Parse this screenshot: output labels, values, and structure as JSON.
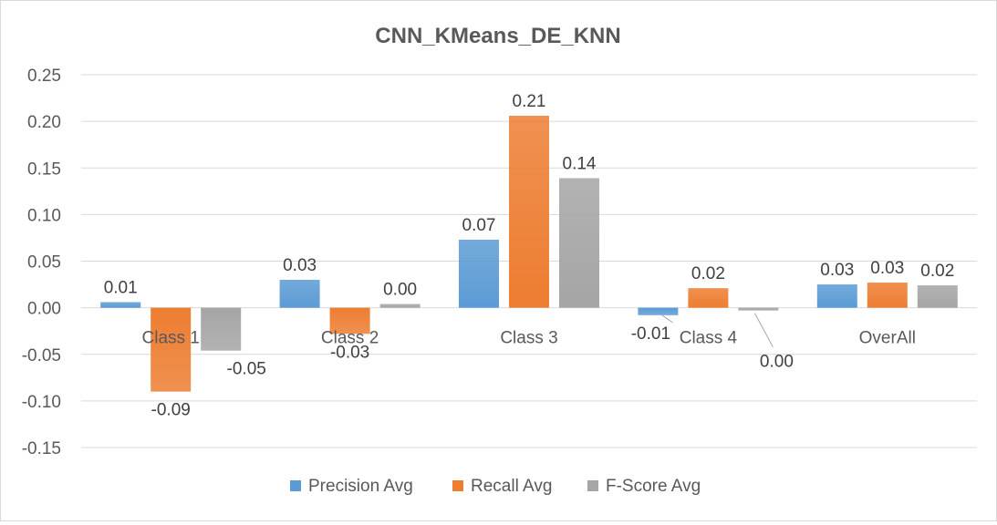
{
  "chart_data": {
    "type": "bar",
    "title": "CNN_KMeans_DE_KNN",
    "xlabel": "",
    "ylabel": "",
    "categories": [
      "Class 1",
      "Class 2",
      "Class 3",
      "Class 4",
      "OverAll"
    ],
    "ylim": [
      -0.15,
      0.25
    ],
    "yticks": [
      0.25,
      0.2,
      0.15,
      0.1,
      0.05,
      0.0,
      -0.05,
      -0.1,
      -0.15
    ],
    "ytick_labels": [
      "0.25",
      "0.20",
      "0.15",
      "0.10",
      "0.05",
      "0.00",
      "-0.05",
      "-0.10",
      "-0.15"
    ],
    "grid": true,
    "legend_position": "bottom",
    "series": [
      {
        "name": "Precision Avg",
        "color": "#5b9bd5",
        "values": [
          0.006,
          0.03,
          0.073,
          -0.008,
          0.025
        ],
        "labels": [
          "0.01",
          "0.03",
          "0.07",
          "-0.01",
          "0.03"
        ]
      },
      {
        "name": "Recall Avg",
        "color": "#ed7d31",
        "values": [
          -0.09,
          -0.028,
          0.206,
          0.021,
          0.027
        ],
        "labels": [
          "-0.09",
          "-0.03",
          "0.21",
          "0.02",
          "0.03"
        ]
      },
      {
        "name": "F-Score Avg",
        "color": "#a5a5a5",
        "values": [
          -0.046,
          0.004,
          0.139,
          -0.003,
          0.024
        ],
        "labels": [
          "-0.05",
          "0.00",
          "0.14",
          "0.00",
          "0.02"
        ]
      }
    ]
  }
}
